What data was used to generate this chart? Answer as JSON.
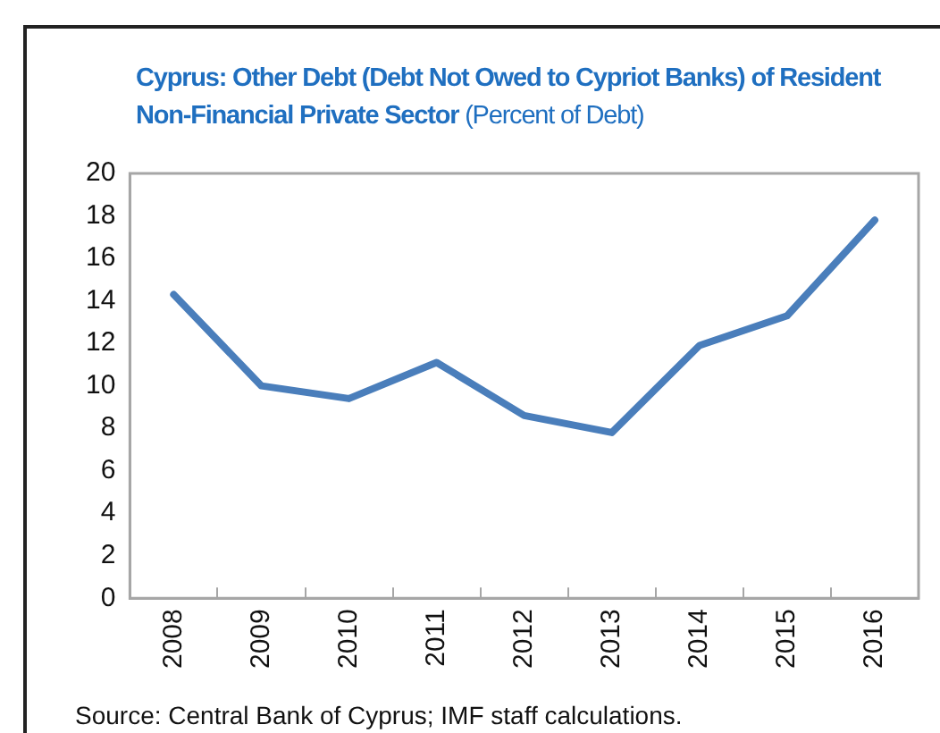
{
  "chart_data": {
    "type": "line",
    "title": "Cyprus: Other Debt (Debt Not Owed to Cypriot Banks) of Resident Non-Financial Private Sector",
    "subtitle": "(Percent of Debt)",
    "categories": [
      "2008",
      "2009",
      "2010",
      "2011",
      "2012",
      "2013",
      "2014",
      "2015",
      "2016"
    ],
    "series": [
      {
        "color": "#4a7ebb",
        "values": [
          14.3,
          10.0,
          9.4,
          11.1,
          8.6,
          7.8,
          11.9,
          13.3,
          17.8
        ]
      }
    ],
    "ylim": [
      0,
      20
    ],
    "yticks": [
      0,
      2,
      4,
      6,
      8,
      10,
      12,
      14,
      16,
      18,
      20
    ],
    "grid": false,
    "legend": false,
    "marker": "none",
    "line_style": "solid",
    "annotations": [
      "Source: Central Bank of Cyprus; IMF staff calculations."
    ]
  }
}
